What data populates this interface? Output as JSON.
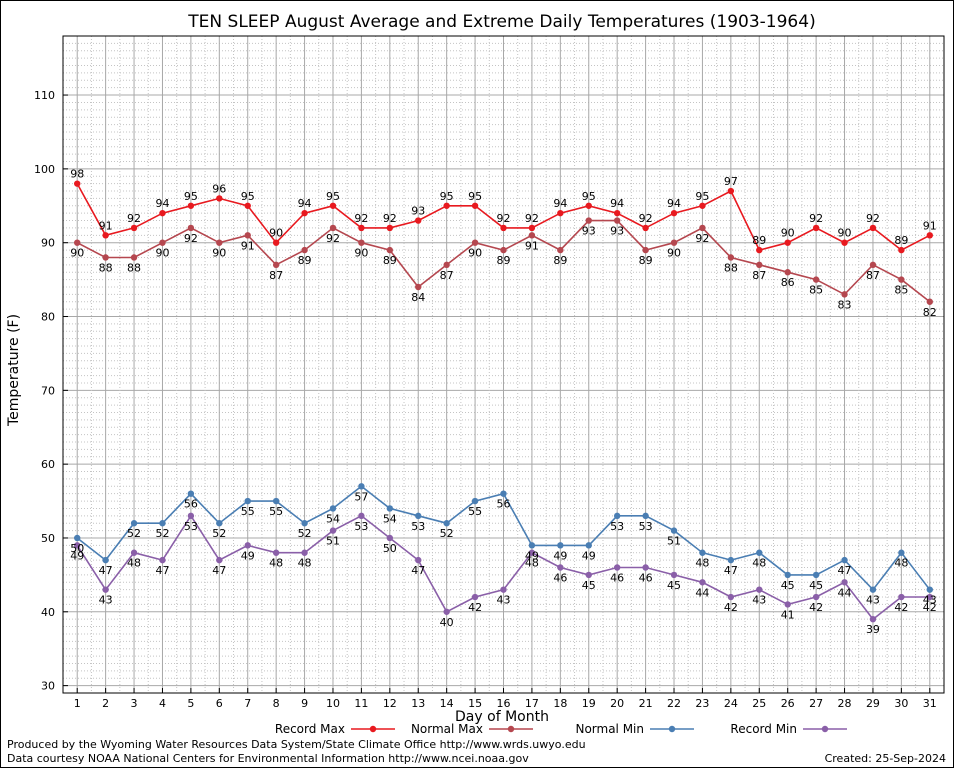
{
  "chart_data": {
    "type": "line",
    "title": "TEN SLEEP August Average and Extreme Daily Temperatures (1903-1964)",
    "xlabel": "Day of Month",
    "ylabel": "Temperature (F)",
    "x": [
      1,
      2,
      3,
      4,
      5,
      6,
      7,
      8,
      9,
      10,
      11,
      12,
      13,
      14,
      15,
      16,
      17,
      18,
      19,
      20,
      21,
      22,
      23,
      24,
      25,
      26,
      27,
      28,
      29,
      30,
      31
    ],
    "xlim": [
      0.5,
      31.5
    ],
    "ylim": [
      29,
      118
    ],
    "yticks": [
      30,
      40,
      50,
      60,
      70,
      80,
      90,
      100,
      110
    ],
    "grid": true,
    "legend_position": "bottom",
    "series": [
      {
        "name": "Record Max",
        "color": "#e8191f",
        "values": [
          98,
          91,
          92,
          94,
          95,
          96,
          95,
          90,
          94,
          95,
          92,
          92,
          93,
          95,
          95,
          92,
          92,
          94,
          95,
          94,
          92,
          94,
          95,
          97,
          89,
          90,
          92,
          90,
          92,
          89,
          91
        ]
      },
      {
        "name": "Normal Max",
        "color": "#b5474f",
        "values": [
          90,
          88,
          88,
          90,
          92,
          90,
          91,
          87,
          89,
          92,
          90,
          89,
          84,
          87,
          90,
          89,
          91,
          89,
          93,
          93,
          89,
          90,
          92,
          88,
          87,
          86,
          85,
          83,
          87,
          85,
          82
        ]
      },
      {
        "name": "Normal Min",
        "color": "#4a7eb3",
        "values": [
          50,
          47,
          52,
          52,
          56,
          52,
          55,
          55,
          52,
          54,
          57,
          54,
          53,
          52,
          55,
          56,
          49,
          49,
          49,
          53,
          53,
          51,
          48,
          47,
          48,
          45,
          45,
          47,
          43,
          48,
          43
        ]
      },
      {
        "name": "Record Min",
        "color": "#8a5fa8",
        "values": [
          49,
          43,
          48,
          47,
          53,
          47,
          49,
          48,
          48,
          51,
          53,
          50,
          47,
          40,
          42,
          43,
          48,
          46,
          45,
          46,
          46,
          45,
          44,
          42,
          43,
          41,
          42,
          44,
          39,
          42,
          42
        ]
      }
    ]
  },
  "footer": {
    "producer": "Produced by the Wyoming Water Resources Data System/State Climate Office http://www.wrds.uwyo.edu",
    "courtesy": "Data courtesy NOAA National Centers for Environmental Information http://www.ncei.noaa.gov",
    "created": "Created:  25-Sep-2024"
  }
}
